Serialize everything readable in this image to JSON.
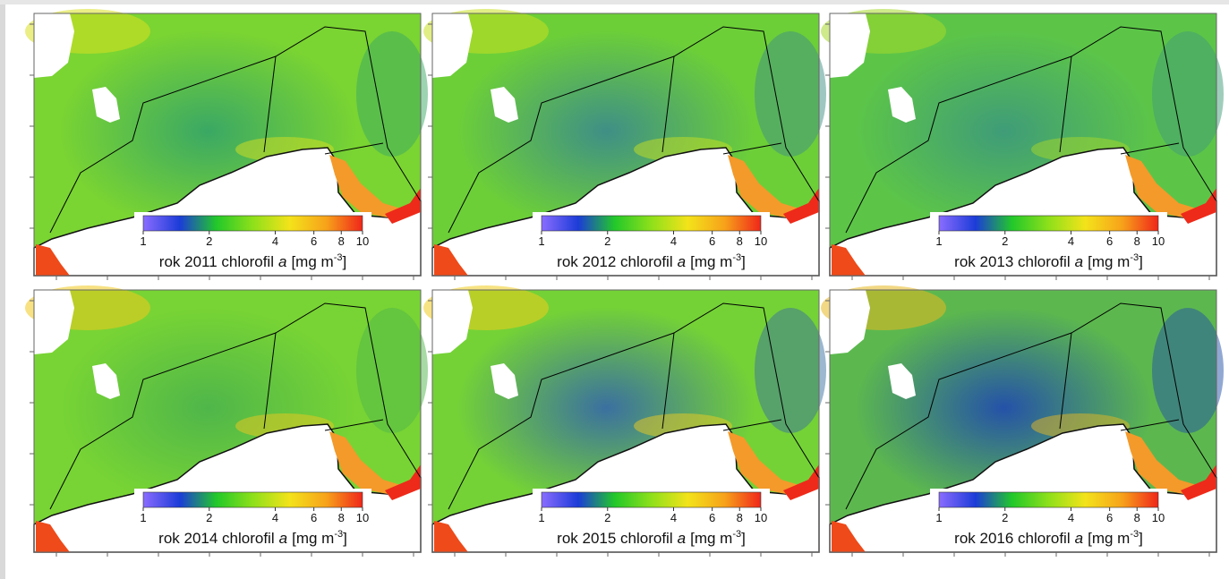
{
  "colorbar": {
    "lim": [
      1,
      10
    ],
    "log": true,
    "ticks": [
      1,
      2,
      4,
      6,
      8,
      10
    ],
    "colors": [
      "#8a6cff",
      "#1c3cd8",
      "#22c82a",
      "#8ee01a",
      "#f3e31a",
      "#f7a31a",
      "#f0261a"
    ]
  },
  "panels": [
    {
      "caption": {
        "text": "rok 2011 chlorofil",
        "italic": "a",
        "unit": "[mg m",
        "exponent": "-3",
        "close": "]"
      }
    },
    {
      "caption": {
        "text": "rok 2012 chlorofil",
        "italic": "a",
        "unit": "[mg m",
        "exponent": "-3",
        "close": "]"
      }
    },
    {
      "caption": {
        "text": "rok 2013 chlorofil",
        "italic": "a",
        "unit": "[mg m",
        "exponent": "-3",
        "close": "]"
      }
    },
    {
      "caption": {
        "text": "rok 2014 chlorofil",
        "italic": "a",
        "unit": "[mg m",
        "exponent": "-3",
        "close": "]"
      }
    },
    {
      "caption": {
        "text": "rok 2015 chlorofil",
        "italic": "a",
        "unit": "[mg m",
        "exponent": "-3",
        "close": "]"
      }
    },
    {
      "caption": {
        "text": "rok 2016 chlorofil",
        "italic": "a",
        "unit": "[mg m",
        "exponent": "-3",
        "close": "]"
      }
    }
  ]
}
